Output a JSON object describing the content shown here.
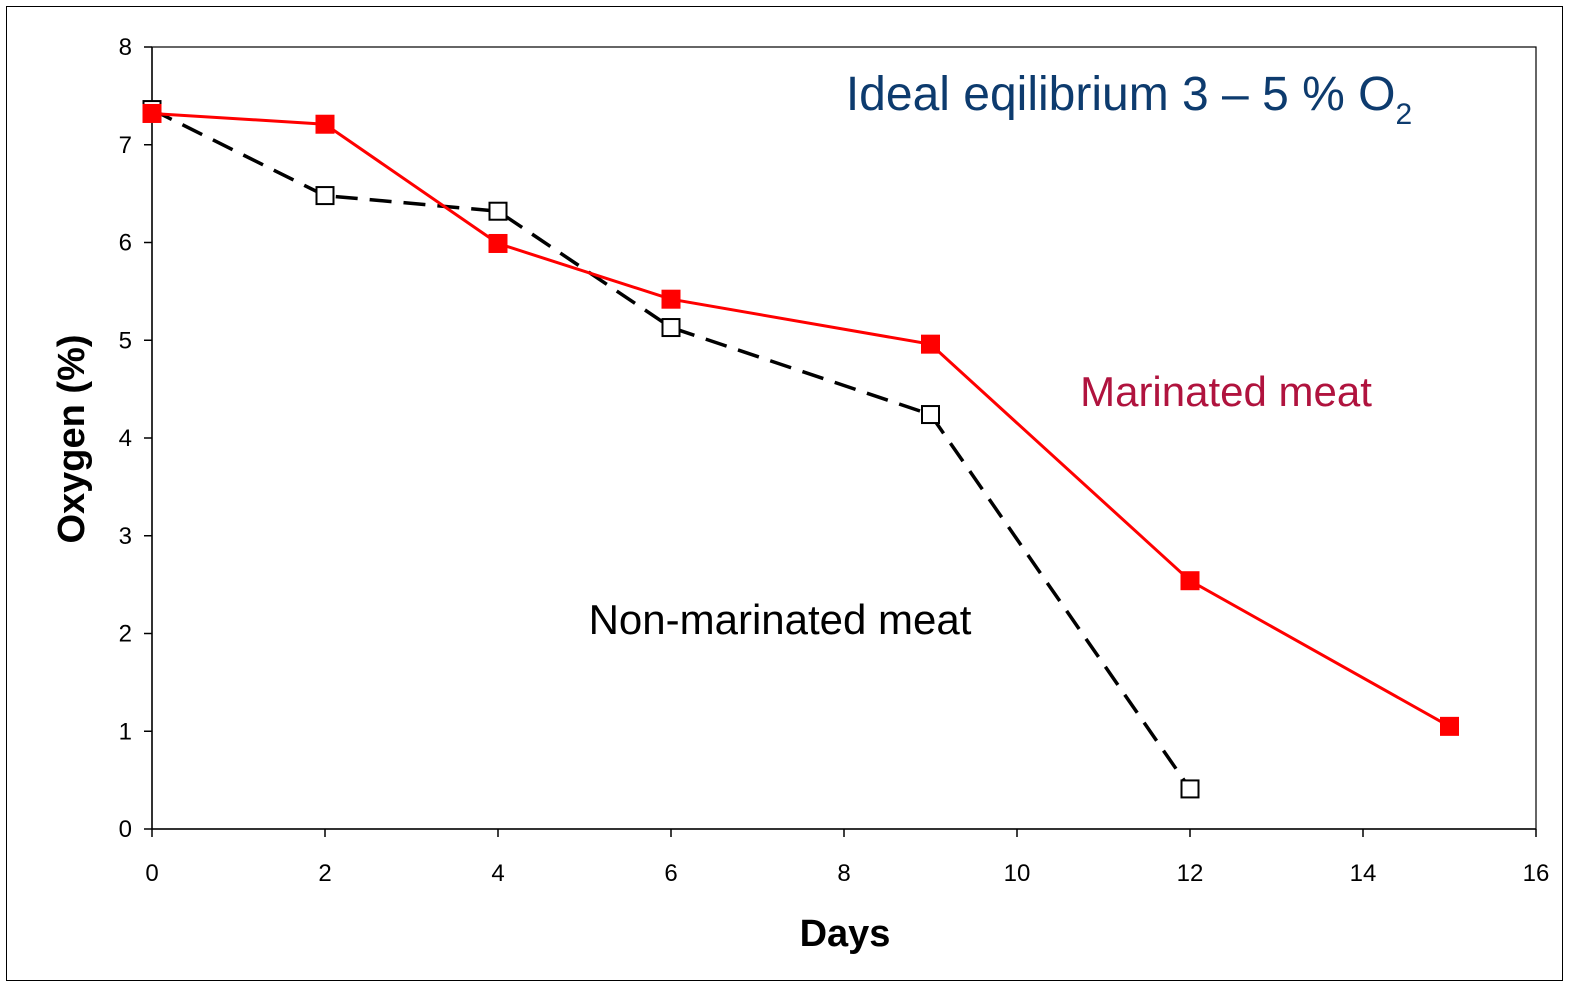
{
  "chart_data": {
    "type": "line",
    "xlabel": "Days",
    "ylabel": "Oxygen (%)",
    "xlim": [
      0,
      16
    ],
    "ylim": [
      0,
      8
    ],
    "xticks": [
      "0",
      "2",
      "4",
      "6",
      "8",
      "10",
      "12",
      "14",
      "16"
    ],
    "yticks": [
      "0",
      "1",
      "2",
      "3",
      "4",
      "5",
      "6",
      "7",
      "8"
    ],
    "grid": false,
    "series": [
      {
        "name": "Marinated meat",
        "color": "#ff0000",
        "line_style": "solid",
        "marker": "filled-square",
        "x": [
          0,
          2,
          4,
          6,
          9,
          12,
          15
        ],
        "y": [
          7.32,
          7.21,
          5.99,
          5.42,
          4.96,
          2.54,
          1.05
        ]
      },
      {
        "name": "Non-marinated meat",
        "color": "#000000",
        "line_style": "dashed",
        "marker": "open-square",
        "x": [
          0,
          2,
          4,
          6,
          9,
          12
        ],
        "y": [
          7.36,
          6.48,
          6.32,
          5.13,
          4.24,
          0.41
        ]
      }
    ],
    "annotations": {
      "title_main": "Ideal eqilibrium 3 – 5 % O",
      "title_sub": "2",
      "title_color": "#0d3b6e",
      "marinated_color": "#b0133e",
      "nonmarinated_color": "#000000"
    }
  }
}
